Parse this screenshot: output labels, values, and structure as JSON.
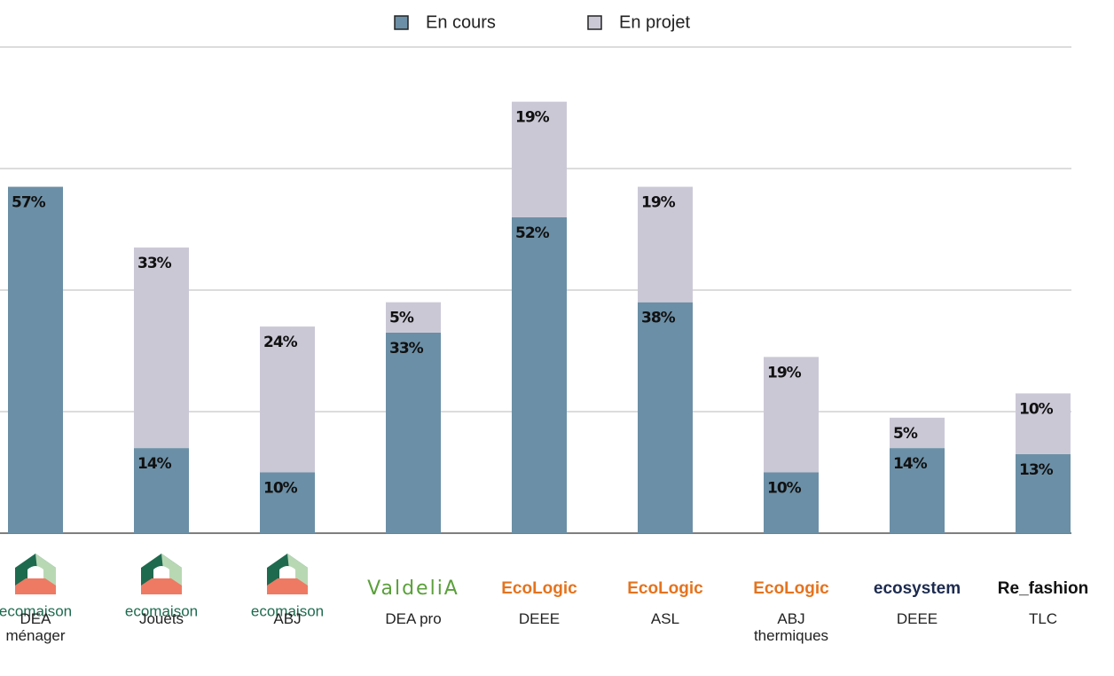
{
  "chart_data": {
    "type": "stacked_bar",
    "categories": [
      "DEA ménager",
      "Jouets",
      "ABJ",
      "DEA pro",
      "DEEE",
      "ASL",
      "ABJ thermiques",
      "DEEE",
      "TLC"
    ],
    "logos": [
      "ecomaison",
      "ecomaison",
      "ecomaison",
      "ValdeliA",
      "EcoLogic",
      "EcoLogic",
      "EcoLogic",
      "ecosystem",
      "Re_fashion"
    ],
    "logo_colors": [
      "#1e6a4f",
      "#1e6a4f",
      "#1e6a4f",
      "#5aa03a",
      "#e5731e",
      "#e5731e",
      "#e5731e",
      "#1d2b4f",
      "#111111"
    ],
    "series": [
      {
        "name": "En cours",
        "color": "#6b8fa6",
        "values": [
          57,
          14,
          10,
          33,
          52,
          38,
          10,
          14,
          13
        ],
        "value_labels": [
          "57%",
          "14%",
          "10%",
          "33%",
          "52%",
          "38%",
          "10%",
          "14%",
          "13%"
        ]
      },
      {
        "name": "En projet",
        "color": "#cbc8d6",
        "values": [
          null,
          33,
          24,
          5,
          19,
          19,
          19,
          5,
          10
        ],
        "value_labels": [
          null,
          "33%",
          "24%",
          "5%",
          "19%",
          "19%",
          "19%",
          "5%",
          "10%"
        ]
      }
    ],
    "ylim": [
      0,
      80
    ],
    "yticks": [
      0,
      20,
      40,
      60,
      80
    ],
    "grid": true
  }
}
